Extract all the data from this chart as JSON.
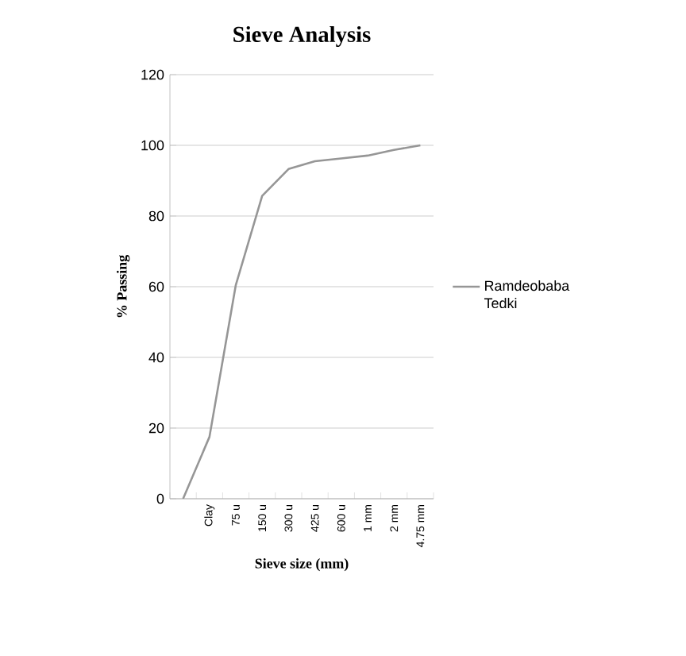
{
  "chart_data": {
    "type": "line",
    "title": "Sieve Analysis",
    "xlabel": "Sieve size (mm)",
    "ylabel": "% Passing",
    "categories": [
      null,
      "Clay",
      "75 u",
      "150 u",
      "300 u",
      "425 u",
      "600 u",
      "1 mm",
      "2 mm",
      "4.75 mm"
    ],
    "series": [
      {
        "name": "Ramdeobaba Tedki",
        "color": "#969696",
        "values": [
          0,
          17.5,
          60.5,
          85.7,
          93.3,
          95.5,
          96.3,
          97.1,
          98.7,
          100
        ]
      }
    ],
    "ylim": [
      0,
      120
    ],
    "yticks": [
      0,
      20,
      40,
      60,
      80,
      100,
      120
    ],
    "grid": "y",
    "legend": "right",
    "marker": "none",
    "line_style": "solid"
  }
}
